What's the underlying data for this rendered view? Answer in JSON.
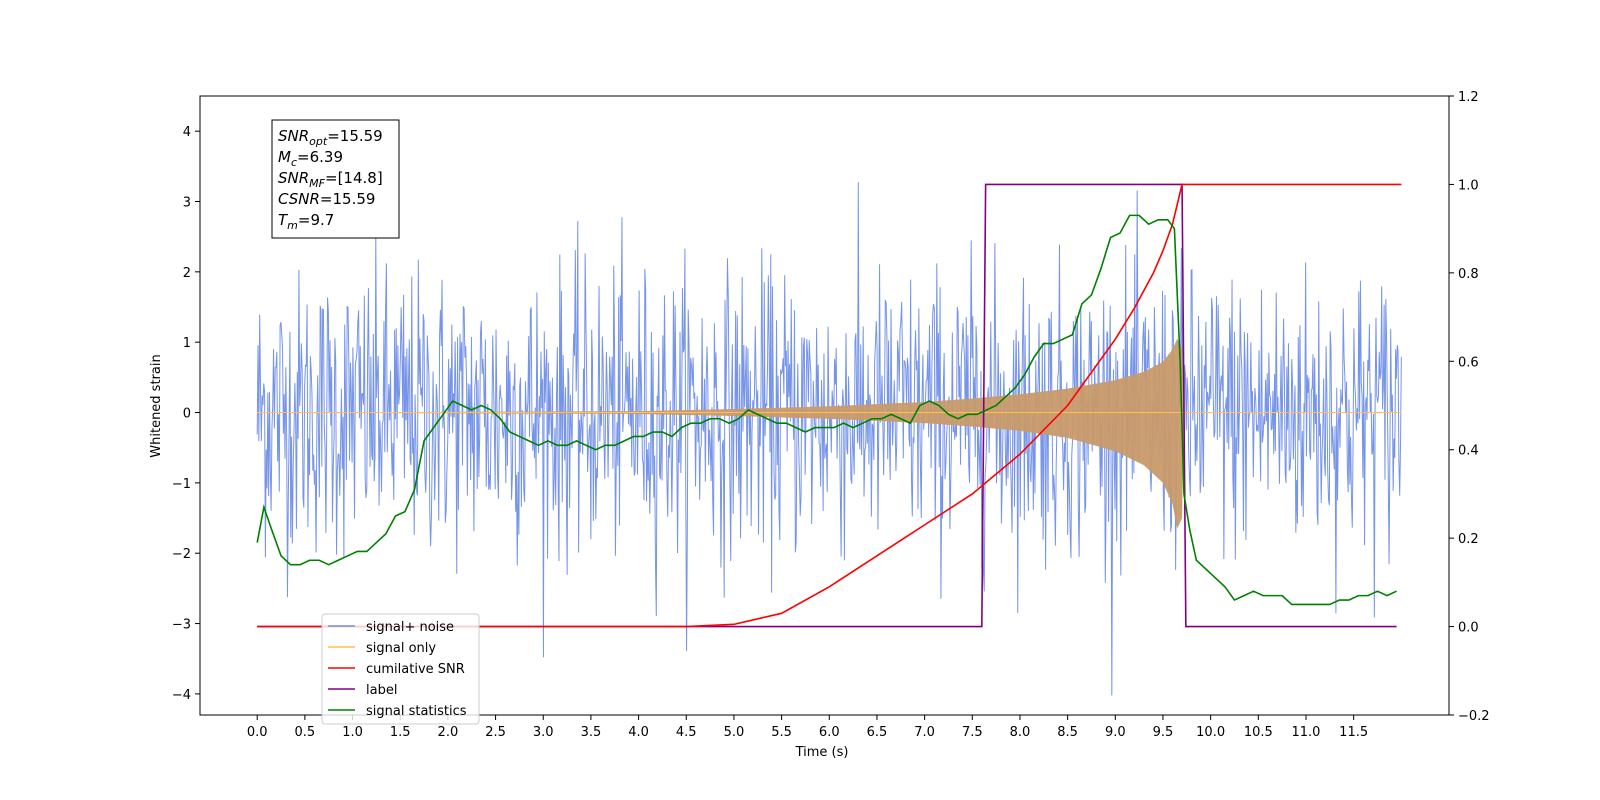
{
  "chart_data": {
    "type": "line",
    "xlabel": "Time (s)",
    "ylabel": "Whitened strain",
    "xlim": [
      -0.6,
      12.5
    ],
    "ylim_left": [
      -4.3,
      4.5
    ],
    "ylim_right": [
      -0.2,
      1.2
    ],
    "x_ticks": [
      0.0,
      0.5,
      1.0,
      1.5,
      2.0,
      2.5,
      3.0,
      3.5,
      4.0,
      4.5,
      5.0,
      5.5,
      6.0,
      6.5,
      7.0,
      7.5,
      8.0,
      8.5,
      9.0,
      9.5,
      10.0,
      10.5,
      11.0,
      11.5
    ],
    "x_tick_labels": [
      "0.0",
      "0.5",
      "1.0",
      "1.5",
      "2.0",
      "2.5",
      "3.0",
      "3.5",
      "4.0",
      "4.5",
      "5.0",
      "5.5",
      "6.0",
      "6.5",
      "7.0",
      "7.5",
      "8.0",
      "8.5",
      "9.0",
      "9.5",
      "10.0",
      "10.5",
      "11.0",
      "11.5"
    ],
    "y_ticks_left": [
      -4,
      -3,
      -2,
      -1,
      0,
      1,
      2,
      3,
      4
    ],
    "y_tick_labels_left": [
      "−4",
      "−3",
      "−2",
      "−1",
      "0",
      "1",
      "2",
      "3",
      "4"
    ],
    "y_ticks_right": [
      -0.2,
      0.0,
      0.2,
      0.4,
      0.6,
      0.8,
      1.0,
      1.2
    ],
    "y_tick_labels_right": [
      "−0.2",
      "0.0",
      "0.2",
      "0.4",
      "0.6",
      "0.8",
      "1.0",
      "1.2"
    ],
    "info_box": {
      "lines": [
        {
          "sym": "SNR",
          "sub": "opt",
          "val": "=15.59"
        },
        {
          "sym": "M",
          "sub": "c",
          "val": "=6.39"
        },
        {
          "sym": "SNR",
          "sub": "MF",
          "val": "=[14.8]"
        },
        {
          "sym": "CSNR",
          "sub": "",
          "val": "=15.59"
        },
        {
          "sym": "T",
          "sub": "m",
          "val": "=9.7"
        }
      ]
    },
    "legend": {
      "placement": "lower-left",
      "entries": [
        {
          "label": "signal+ noise",
          "color": "#6f8ee8"
        },
        {
          "label": "signal only",
          "color": "#ffc04d"
        },
        {
          "label": "cumilative SNR",
          "color": "#ff0000"
        },
        {
          "label": "label",
          "color": "#800080"
        },
        {
          "label": "signal statistics",
          "color": "#008000"
        }
      ]
    },
    "series": [
      {
        "name": "signal+ noise",
        "axis": "left",
        "color": "#6f8ee8",
        "kind": "noise",
        "x_range": [
          0.0,
          12.0
        ],
        "std": 1.0,
        "samples": 1400
      },
      {
        "name": "signal only",
        "axis": "left",
        "color": "#c89a6a",
        "kind": "chirp-envelope",
        "x": [
          0.0,
          4.0,
          5.0,
          6.0,
          7.0,
          7.5,
          8.0,
          8.5,
          9.0,
          9.3,
          9.5,
          9.6,
          9.65,
          9.7,
          9.72,
          12.0
        ],
        "upper": [
          0.0,
          0.02,
          0.05,
          0.09,
          0.15,
          0.2,
          0.26,
          0.34,
          0.46,
          0.58,
          0.72,
          0.9,
          1.05,
          0.9,
          0.0,
          0.0
        ],
        "lower": [
          0.0,
          -0.02,
          -0.05,
          -0.09,
          -0.15,
          -0.2,
          -0.26,
          -0.36,
          -0.55,
          -0.75,
          -1.0,
          -1.3,
          -1.65,
          -1.5,
          0.0,
          0.0
        ]
      },
      {
        "name": "cumilative SNR",
        "axis": "right",
        "color": "#ff0000",
        "x": [
          0.0,
          4.5,
          5.0,
          5.5,
          6.0,
          6.5,
          7.0,
          7.5,
          8.0,
          8.5,
          9.0,
          9.2,
          9.4,
          9.5,
          9.6,
          9.7,
          9.72,
          12.0
        ],
        "y": [
          0.0,
          0.0,
          0.005,
          0.03,
          0.09,
          0.16,
          0.23,
          0.3,
          0.39,
          0.5,
          0.65,
          0.72,
          0.8,
          0.85,
          0.91,
          1.0,
          1.0,
          1.0
        ]
      },
      {
        "name": "label",
        "axis": "right",
        "color": "#800080",
        "x": [
          0.0,
          7.6,
          7.64,
          9.7,
          9.74,
          11.95
        ],
        "y": [
          0.0,
          0.0,
          1.0,
          1.0,
          0.0,
          0.0
        ]
      },
      {
        "name": "signal statistics",
        "axis": "right",
        "color": "#008000",
        "x": [
          0.0,
          0.07,
          0.15,
          0.25,
          0.35,
          0.45,
          0.55,
          0.65,
          0.75,
          0.85,
          0.95,
          1.05,
          1.15,
          1.25,
          1.35,
          1.45,
          1.55,
          1.65,
          1.75,
          1.85,
          1.95,
          2.05,
          2.15,
          2.25,
          2.35,
          2.45,
          2.55,
          2.65,
          2.75,
          2.85,
          2.95,
          3.05,
          3.15,
          3.25,
          3.35,
          3.45,
          3.55,
          3.65,
          3.75,
          3.85,
          3.95,
          4.05,
          4.15,
          4.25,
          4.35,
          4.45,
          4.55,
          4.65,
          4.75,
          4.85,
          4.95,
          5.05,
          5.15,
          5.25,
          5.35,
          5.45,
          5.55,
          5.65,
          5.75,
          5.85,
          5.95,
          6.05,
          6.15,
          6.25,
          6.35,
          6.45,
          6.55,
          6.65,
          6.75,
          6.85,
          6.95,
          7.05,
          7.15,
          7.25,
          7.35,
          7.45,
          7.55,
          7.65,
          7.75,
          7.85,
          7.95,
          8.05,
          8.15,
          8.25,
          8.35,
          8.45,
          8.55,
          8.65,
          8.75,
          8.85,
          8.95,
          9.05,
          9.15,
          9.25,
          9.35,
          9.45,
          9.55,
          9.62,
          9.68,
          9.72,
          9.78,
          9.85,
          9.95,
          10.05,
          10.15,
          10.25,
          10.35,
          10.45,
          10.55,
          10.65,
          10.75,
          10.85,
          10.95,
          11.05,
          11.15,
          11.25,
          11.35,
          11.45,
          11.55,
          11.65,
          11.75,
          11.85,
          11.95
        ],
        "y": [
          0.19,
          0.27,
          0.22,
          0.16,
          0.14,
          0.14,
          0.15,
          0.15,
          0.14,
          0.15,
          0.16,
          0.17,
          0.17,
          0.19,
          0.21,
          0.25,
          0.26,
          0.31,
          0.42,
          0.45,
          0.48,
          0.51,
          0.5,
          0.49,
          0.5,
          0.49,
          0.47,
          0.44,
          0.43,
          0.42,
          0.41,
          0.42,
          0.41,
          0.41,
          0.42,
          0.41,
          0.4,
          0.41,
          0.41,
          0.42,
          0.43,
          0.43,
          0.44,
          0.44,
          0.43,
          0.45,
          0.46,
          0.46,
          0.47,
          0.47,
          0.46,
          0.47,
          0.49,
          0.48,
          0.47,
          0.46,
          0.46,
          0.45,
          0.44,
          0.45,
          0.45,
          0.45,
          0.46,
          0.45,
          0.46,
          0.47,
          0.47,
          0.48,
          0.47,
          0.46,
          0.5,
          0.51,
          0.5,
          0.48,
          0.47,
          0.48,
          0.48,
          0.49,
          0.5,
          0.52,
          0.54,
          0.57,
          0.61,
          0.64,
          0.64,
          0.65,
          0.66,
          0.73,
          0.75,
          0.81,
          0.88,
          0.89,
          0.93,
          0.93,
          0.91,
          0.92,
          0.92,
          0.9,
          0.6,
          0.3,
          0.22,
          0.15,
          0.13,
          0.11,
          0.09,
          0.06,
          0.07,
          0.08,
          0.07,
          0.07,
          0.07,
          0.05,
          0.05,
          0.05,
          0.05,
          0.05,
          0.06,
          0.06,
          0.07,
          0.07,
          0.08,
          0.07,
          0.08
        ]
      }
    ]
  }
}
